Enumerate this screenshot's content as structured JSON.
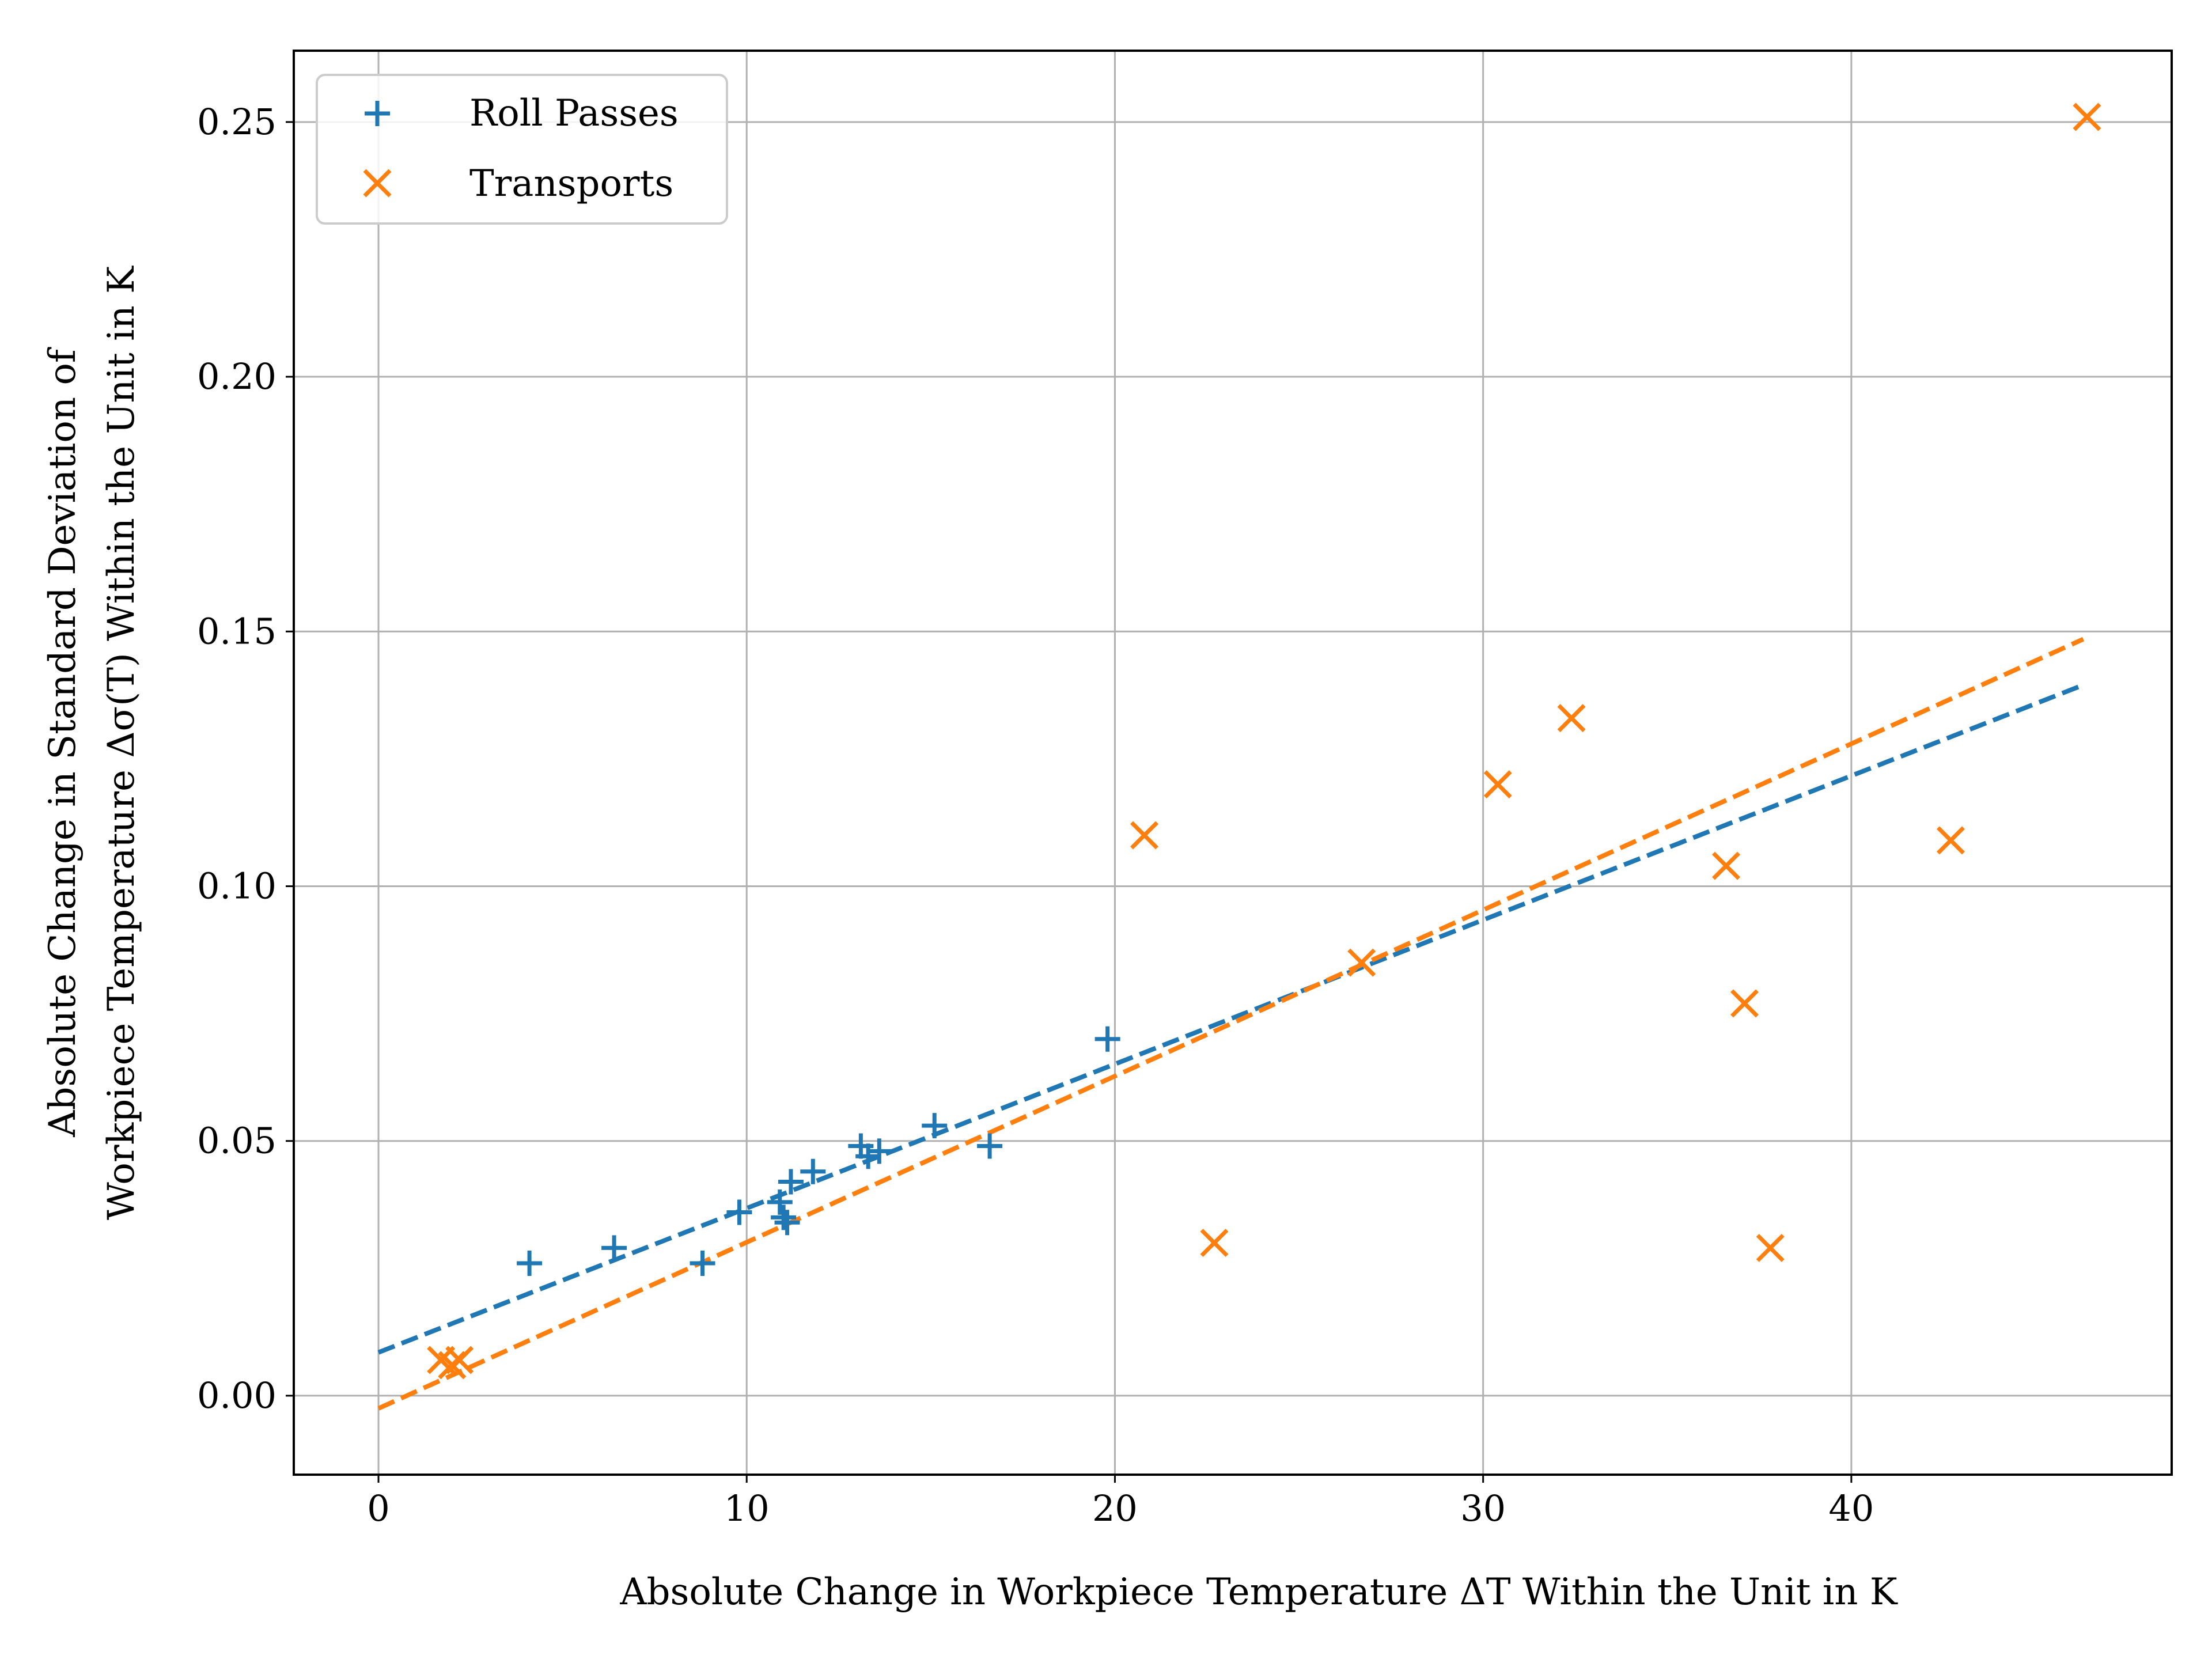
{
  "chart_data": {
    "type": "scatter",
    "title": "",
    "xlabel": "Absolute Change in Workpiece Temperature ΔT Within the Unit in K",
    "ylabel_lines": [
      "Absolute Change in Standard Deviation of",
      "Workpiece Temperature Δσ(T) Within the Unit in K"
    ],
    "xlim": [
      -2.3,
      48.7
    ],
    "ylim": [
      -0.0155,
      0.264
    ],
    "xticks": [
      0,
      10,
      20,
      30,
      40
    ],
    "xtick_labels": [
      "0",
      "10",
      "20",
      "30",
      "40"
    ],
    "yticks": [
      0.0,
      0.05,
      0.1,
      0.15,
      0.2,
      0.25
    ],
    "ytick_labels": [
      "0.00",
      "0.05",
      "0.10",
      "0.15",
      "0.20",
      "0.25"
    ],
    "grid": true,
    "legend_position": "top-left",
    "series": [
      {
        "name": "Roll Passes",
        "marker": "plus",
        "color": "#1f77b4",
        "points": [
          [
            4.1,
            0.026
          ],
          [
            6.4,
            0.029
          ],
          [
            8.8,
            0.026
          ],
          [
            9.8,
            0.036
          ],
          [
            10.9,
            0.038
          ],
          [
            11.0,
            0.035
          ],
          [
            11.1,
            0.034
          ],
          [
            11.2,
            0.042
          ],
          [
            11.8,
            0.044
          ],
          [
            13.1,
            0.049
          ],
          [
            13.3,
            0.047
          ],
          [
            13.6,
            0.048
          ],
          [
            15.1,
            0.053
          ],
          [
            16.6,
            0.049
          ],
          [
            19.8,
            0.07
          ]
        ],
        "fit": {
          "x": [
            0,
            46.3
          ],
          "y": [
            0.0085,
            0.1395
          ]
        }
      },
      {
        "name": "Transports",
        "marker": "x",
        "color": "#ff7f0e",
        "points": [
          [
            1.7,
            0.007
          ],
          [
            2.0,
            0.006
          ],
          [
            2.2,
            0.007
          ],
          [
            20.8,
            0.11
          ],
          [
            22.7,
            0.03
          ],
          [
            26.7,
            0.085
          ],
          [
            30.4,
            0.12
          ],
          [
            32.4,
            0.133
          ],
          [
            36.6,
            0.104
          ],
          [
            37.1,
            0.077
          ],
          [
            37.8,
            0.029
          ],
          [
            42.7,
            0.109
          ],
          [
            46.4,
            0.251
          ]
        ],
        "fit": {
          "x": [
            0,
            46.3
          ],
          "y": [
            -0.0025,
            0.1485
          ]
        }
      }
    ]
  }
}
